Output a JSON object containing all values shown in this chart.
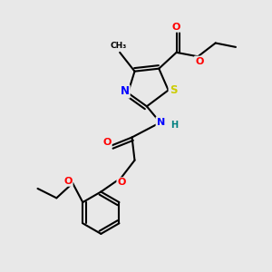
{
  "background_color": "#e8e8e8",
  "atom_colors": {
    "O": "#ff0000",
    "N": "#0000ff",
    "S": "#cccc00",
    "C": "#000000",
    "H": "#008080"
  },
  "bond_color": "#000000",
  "bond_width": 1.5
}
